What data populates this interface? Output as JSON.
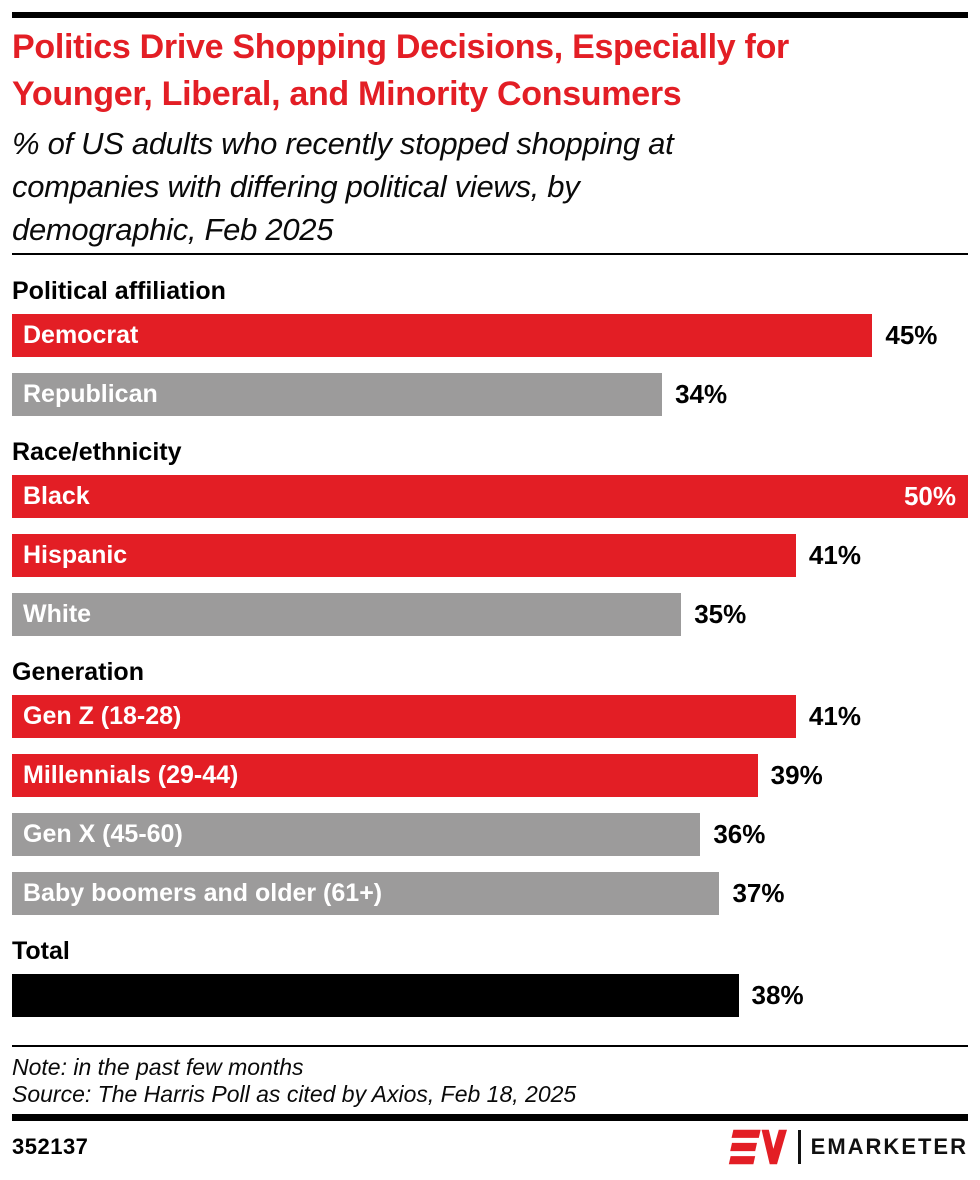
{
  "header": {
    "title_lines": [
      "Politics Drive Shopping Decisions, Especially for",
      "Younger, Liberal, and Minority Consumers"
    ],
    "subtitle_lines": [
      "% of US adults who recently stopped shopping at",
      "companies with differing political views, by",
      "demographic, Feb 2025"
    ]
  },
  "chart_data": {
    "type": "bar",
    "orientation": "horizontal",
    "value_unit": "%",
    "axis_max": 50,
    "grid": false,
    "legend": false,
    "colors": {
      "red": "#e31e25",
      "gray": "#9c9b9b",
      "black": "#000000"
    },
    "groups": [
      {
        "label": "Political affiliation",
        "bars": [
          {
            "label": "Democrat",
            "value": 45,
            "display_value": "45%",
            "color": "red"
          },
          {
            "label": "Republican",
            "value": 34,
            "display_value": "34%",
            "color": "gray"
          }
        ]
      },
      {
        "label": "Race/ethnicity",
        "bars": [
          {
            "label": "Black",
            "value": 50,
            "display_value": "50%",
            "color": "red"
          },
          {
            "label": "Hispanic",
            "value": 41,
            "display_value": "41%",
            "color": "red"
          },
          {
            "label": "White",
            "value": 35,
            "display_value": "35%",
            "color": "gray"
          }
        ]
      },
      {
        "label": "Generation",
        "bars": [
          {
            "label": "Gen Z (18-28)",
            "value": 41,
            "display_value": "41%",
            "color": "red"
          },
          {
            "label": "Millennials (29-44)",
            "value": 39,
            "display_value": "39%",
            "color": "red"
          },
          {
            "label": "Gen X (45-60)",
            "value": 36,
            "display_value": "36%",
            "color": "gray"
          },
          {
            "label": "Baby boomers and older (61+)",
            "value": 37,
            "display_value": "37%",
            "color": "gray"
          }
        ]
      },
      {
        "label": "Total",
        "bars": [
          {
            "label": "",
            "value": 38,
            "display_value": "38%",
            "color": "black"
          }
        ]
      }
    ]
  },
  "footer": {
    "note": "Note: in the past few months",
    "source": "Source: The Harris Poll as cited by Axios, Feb 18, 2025",
    "chart_id": "352137",
    "brand_wordmark": "EMARKETER"
  }
}
